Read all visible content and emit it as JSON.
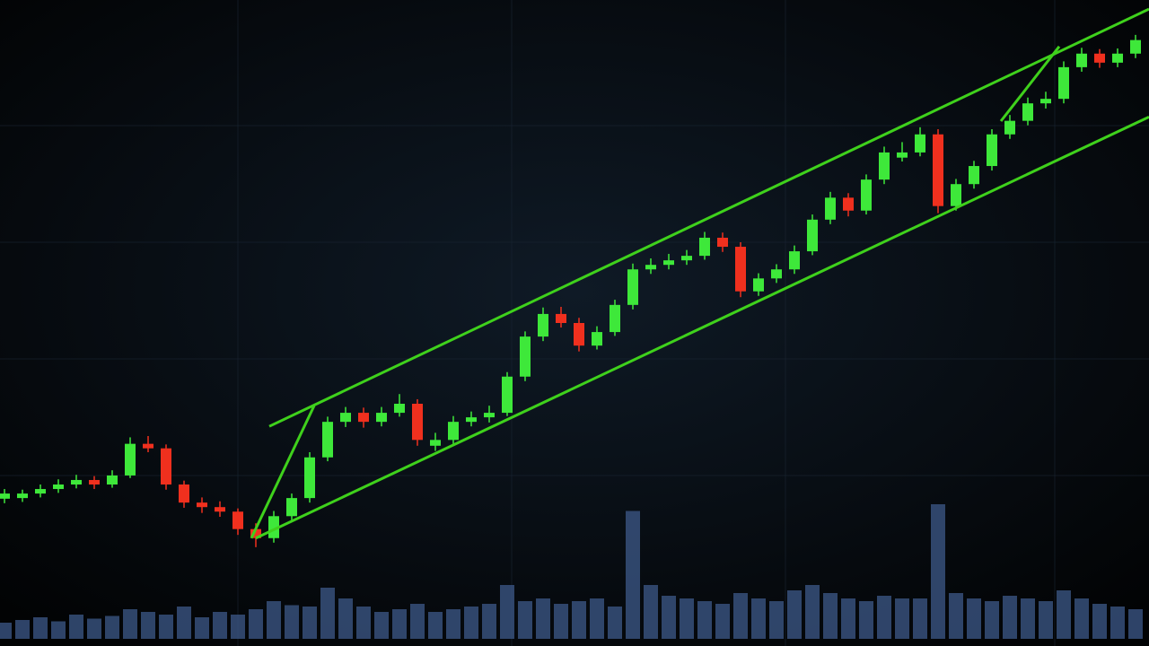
{
  "chart_data": {
    "type": "candlestick",
    "open": [
      22.8,
      22.9,
      23.6,
      24.3,
      25.0,
      25.7,
      25.0,
      26.4,
      31.3,
      30.6,
      25.0,
      22.2,
      21.5,
      20.8,
      18.1,
      16.7,
      20.1,
      22.9,
      29.2,
      34.7,
      36.1,
      34.7,
      36.1,
      37.5,
      31.0,
      31.9,
      34.7,
      35.4,
      36.1,
      41.7,
      47.9,
      51.4,
      50.0,
      46.5,
      48.6,
      52.8,
      58.3,
      59.0,
      59.7,
      60.4,
      63.2,
      61.8,
      54.9,
      56.9,
      58.3,
      61.1,
      66.0,
      69.4,
      67.4,
      72.2,
      75.6,
      76.4,
      79.2,
      68.1,
      71.5,
      74.3,
      79.2,
      81.3,
      84.0,
      84.7,
      89.6,
      91.7,
      90.3,
      91.7
    ],
    "close": [
      23.6,
      23.6,
      24.3,
      25.0,
      25.7,
      25.0,
      26.4,
      31.3,
      30.6,
      25.0,
      22.2,
      21.5,
      20.8,
      18.1,
      16.7,
      20.1,
      22.9,
      29.2,
      34.7,
      36.1,
      34.7,
      36.1,
      37.5,
      31.9,
      31.9,
      34.7,
      35.4,
      36.1,
      41.7,
      47.9,
      51.4,
      50.0,
      46.5,
      48.6,
      52.8,
      58.3,
      59.0,
      59.7,
      60.4,
      63.2,
      61.8,
      54.9,
      56.9,
      58.3,
      61.1,
      66.0,
      69.4,
      67.4,
      72.2,
      76.4,
      76.4,
      79.2,
      68.1,
      71.5,
      74.3,
      79.2,
      81.3,
      84.0,
      84.7,
      89.6,
      91.7,
      90.3,
      91.7,
      93.8
    ],
    "high": [
      24.3,
      24.2,
      25.0,
      25.8,
      26.5,
      26.3,
      27.2,
      32.3,
      32.5,
      31.2,
      25.6,
      23.0,
      22.4,
      21.3,
      19.0,
      20.9,
      23.6,
      30.0,
      35.5,
      37.0,
      36.9,
      37.0,
      39.0,
      38.2,
      33.0,
      35.6,
      36.3,
      37.2,
      42.4,
      48.7,
      52.4,
      52.5,
      50.8,
      49.5,
      53.6,
      59.2,
      60.0,
      60.7,
      61.3,
      64.1,
      64.0,
      62.5,
      57.7,
      59.1,
      62.0,
      66.8,
      70.3,
      70.1,
      73.0,
      77.3,
      78.0,
      80.3,
      80.0,
      72.3,
      75.1,
      80.0,
      82.2,
      84.9,
      85.8,
      90.5,
      92.6,
      92.4,
      92.5,
      94.6
    ],
    "low": [
      22.1,
      22.3,
      23.0,
      23.7,
      24.4,
      24.3,
      24.5,
      26.0,
      30.0,
      24.2,
      21.4,
      20.6,
      20.0,
      17.2,
      15.3,
      16.0,
      19.5,
      22.2,
      28.6,
      33.9,
      33.8,
      34.0,
      35.5,
      31.0,
      30.2,
      31.3,
      34.0,
      34.6,
      35.6,
      41.0,
      47.2,
      49.3,
      45.6,
      45.9,
      48.0,
      52.1,
      57.6,
      58.3,
      59.0,
      59.8,
      61.0,
      54.0,
      54.2,
      56.2,
      57.6,
      60.5,
      65.3,
      66.5,
      66.8,
      71.5,
      75.0,
      75.8,
      67.0,
      67.4,
      70.8,
      73.6,
      78.5,
      80.6,
      83.2,
      84.0,
      88.9,
      89.5,
      89.6,
      91.0
    ],
    "volume": [
      12,
      14,
      16,
      13,
      18,
      15,
      17,
      22,
      20,
      18,
      24,
      16,
      20,
      18,
      22,
      28,
      25,
      24,
      38,
      30,
      24,
      20,
      22,
      26,
      20,
      22,
      24,
      26,
      40,
      28,
      30,
      26,
      28,
      30,
      24,
      95,
      40,
      32,
      30,
      28,
      26,
      34,
      30,
      28,
      36,
      40,
      34,
      30,
      28,
      32,
      30,
      30,
      100,
      34,
      30,
      28,
      32,
      30,
      28,
      36,
      30,
      26,
      24,
      22
    ],
    "up_color": "#3ee83a",
    "down_color": "#f0301e",
    "volume_color": "#3d5a8a",
    "line_color": "#3fd11c",
    "xlim": [
      -0.25,
      63.75
    ],
    "ylim": [
      0,
      100
    ],
    "volume_lim": [
      0,
      100
    ],
    "lines": [
      {
        "x": [
          14.75,
          63.75
        ],
        "y": [
          34.0,
          98.6
        ]
      },
      {
        "x": [
          14.0,
          63.75
        ],
        "y": [
          16.7,
          81.9
        ]
      },
      {
        "x": [
          13.75,
          17.25
        ],
        "y": [
          16.7,
          37.2
        ]
      },
      {
        "x": [
          55.5,
          58.75
        ],
        "y": [
          81.25,
          92.8
        ]
      }
    ]
  }
}
